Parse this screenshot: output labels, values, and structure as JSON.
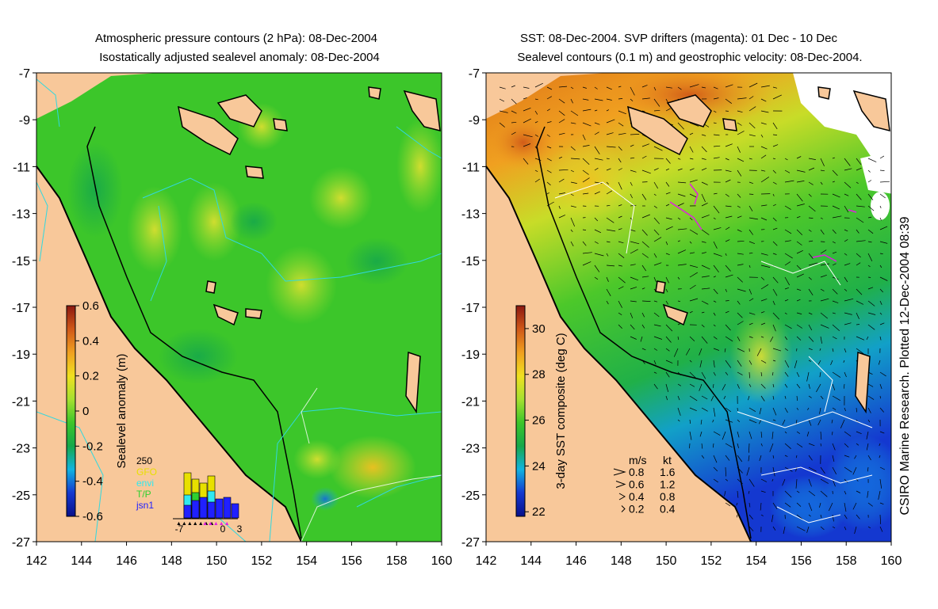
{
  "left_panel": {
    "title_line1": "Atmospheric pressure contours (2 hPa): 08-Dec-2004",
    "title_line2": "Isostatically adjusted sealevel anomaly: 08-Dec-2004",
    "colorbar": {
      "label": "Sealevel anomaly (m)",
      "ticks": [
        "0.6",
        "0.4",
        "0.2",
        "0",
        "-0.2",
        "-0.4",
        "-0.6"
      ],
      "range": [
        -0.6,
        0.6
      ],
      "colors": [
        "#08108a",
        "#1438d0",
        "#12b4e0",
        "#16a84a",
        "#3cc62a",
        "#a6e030",
        "#f0e020",
        "#f0a020",
        "#d05818",
        "#8c1810"
      ]
    },
    "inset": {
      "ymax_label": "250",
      "legend": [
        {
          "label": "GFO",
          "color": "#e8e000"
        },
        {
          "label": "envi",
          "color": "#30e8f0"
        },
        {
          "label": "T/P",
          "color": "#30d030"
        },
        {
          "label": "jsn1",
          "color": "#2020ff"
        }
      ],
      "x_labels": [
        "-7",
        "0",
        "3"
      ]
    }
  },
  "right_panel": {
    "title_line1": "SST: 08-Dec-2004. SVP drifters (magenta): 01 Dec - 10 Dec",
    "title_line2": "Sealevel contours (0.1 m) and geostrophic velocity: 08-Dec-2004.",
    "colorbar": {
      "label": "3-day SST composite (deg C)",
      "ticks": [
        "30",
        "28",
        "26",
        "24",
        "22"
      ],
      "range": [
        21.8,
        31.0
      ],
      "colors": [
        "#08108a",
        "#1438d0",
        "#12b4e0",
        "#16a84a",
        "#3cc62a",
        "#a6e030",
        "#f0e020",
        "#f0a020",
        "#d05818",
        "#8c1810"
      ]
    },
    "velocity_key": {
      "header_ms": "m/s",
      "header_kt": "kt",
      "rows": [
        {
          "ms": "0.8",
          "kt": "1.6"
        },
        {
          "ms": "0.6",
          "kt": "1.2"
        },
        {
          "ms": "0.4",
          "kt": "0.8"
        },
        {
          "ms": "0.2",
          "kt": "0.4"
        }
      ]
    },
    "credit": "CSIRO Marine Research. Plotted 12-Dec-2004 08:39"
  },
  "axes": {
    "lat_labels": [
      "-7",
      "-9",
      "-11",
      "-13",
      "-15",
      "-17",
      "-19",
      "-21",
      "-23",
      "-25",
      "-27"
    ],
    "lon_labels": [
      "142",
      "144",
      "146",
      "148",
      "150",
      "152",
      "154",
      "156",
      "158",
      "160"
    ],
    "lat_range": [
      -27,
      -7
    ],
    "lon_range": [
      142,
      160
    ]
  },
  "colors": {
    "land": "#f8c89a",
    "anomaly_base": "#3cc62a",
    "contour": "#30d8e0",
    "coast": "#000000",
    "drifter": "#e020e0"
  }
}
